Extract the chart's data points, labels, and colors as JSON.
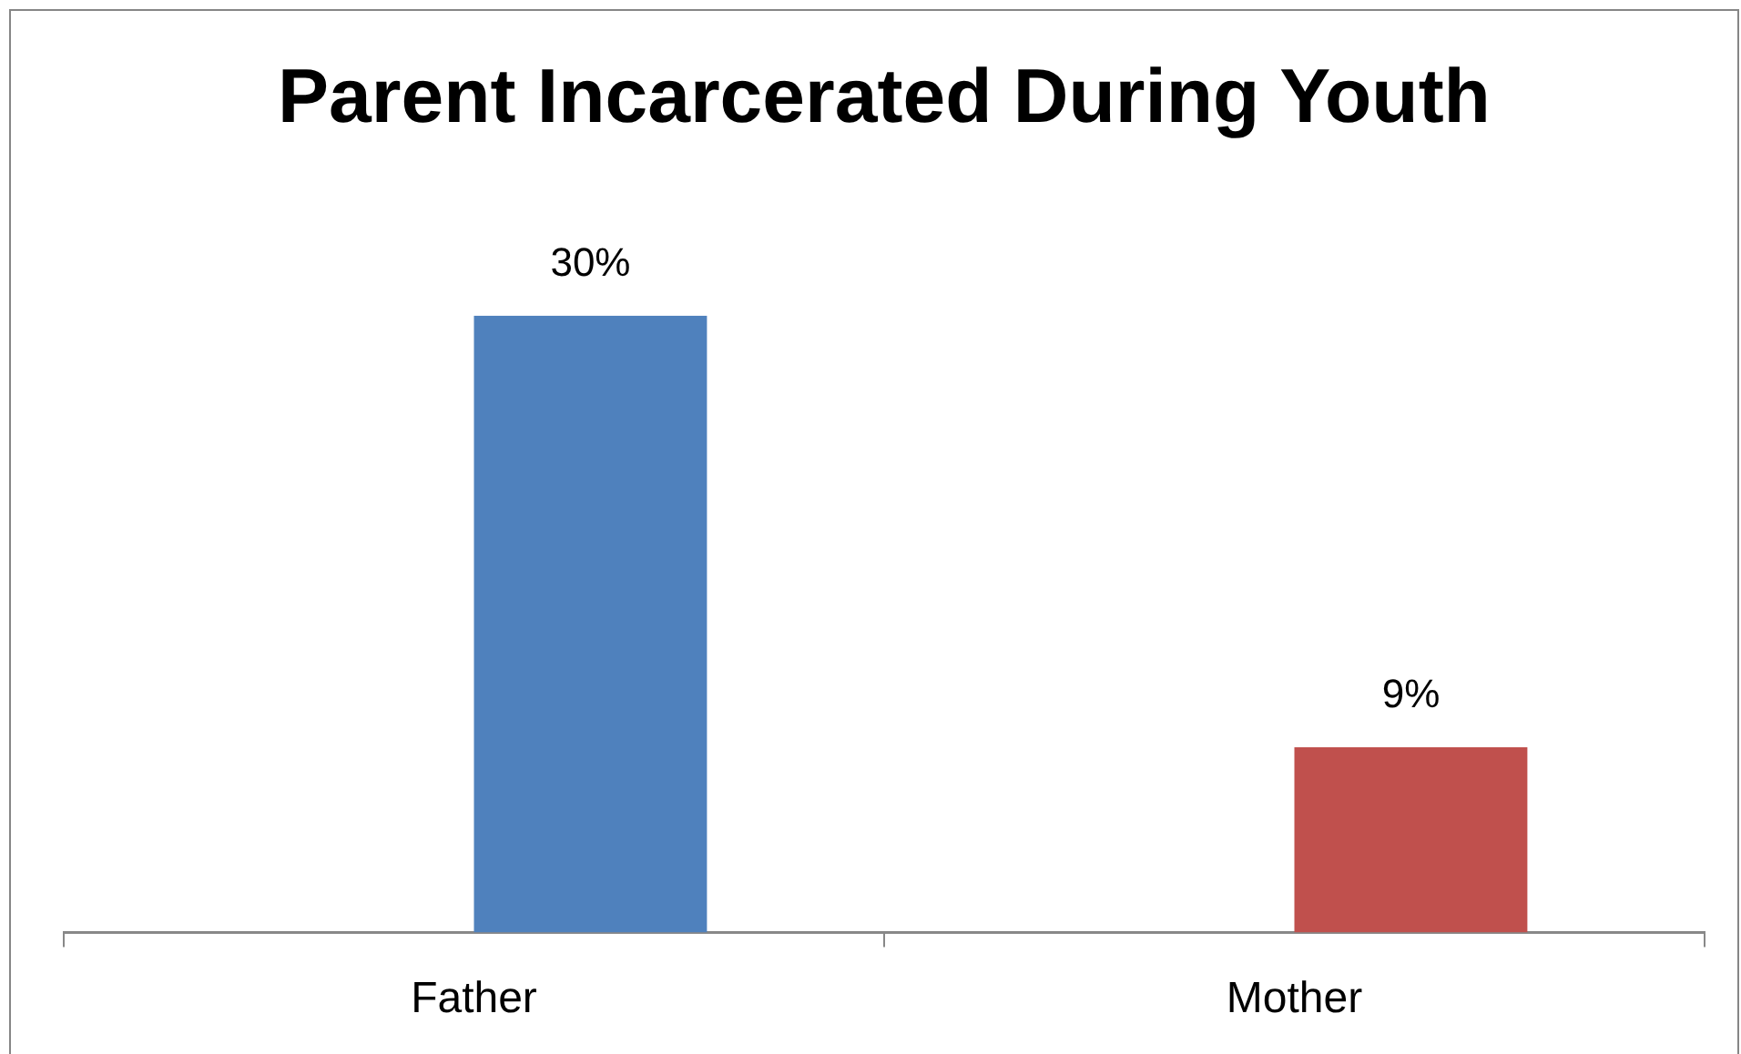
{
  "chart_data": {
    "type": "bar",
    "title": "Parent Incarcerated During Youth",
    "categories": [
      "Father",
      "Mother"
    ],
    "values": [
      30,
      9
    ],
    "colors": [
      "#4f81bd",
      "#c0504d"
    ],
    "value_labels": [
      "30%",
      "9%"
    ],
    "tick_labels": "x"
  }
}
